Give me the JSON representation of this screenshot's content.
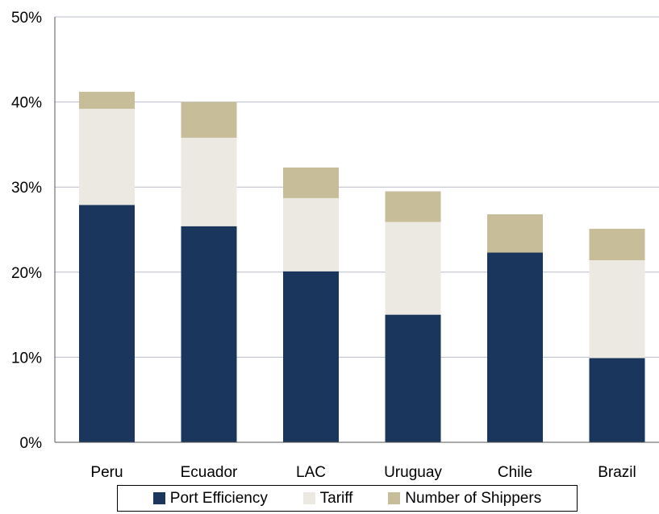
{
  "chart_data": {
    "type": "bar",
    "stacked": true,
    "categories": [
      "Peru",
      "Ecuador",
      "LAC",
      "Uruguay",
      "Chile",
      "Brazil"
    ],
    "series": [
      {
        "name": "Port Efficiency",
        "values": [
          27.9,
          25.4,
          20.1,
          15.0,
          22.3,
          9.9
        ],
        "color": "#1a365d"
      },
      {
        "name": "Tariff",
        "values": [
          11.3,
          10.4,
          8.6,
          10.9,
          0,
          11.5
        ],
        "color": "#ece9e2"
      },
      {
        "name": "Number of Shippers",
        "values": [
          2.0,
          4.2,
          3.6,
          3.6,
          4.5,
          3.7
        ],
        "color": "#c7bd98"
      }
    ],
    "ylim": [
      0,
      50
    ],
    "yticks": [
      "0%",
      "10%",
      "20%",
      "30%",
      "40%",
      "50%"
    ],
    "grid": true,
    "legend": "bottom",
    "title": "",
    "xlabel": "",
    "ylabel": ""
  }
}
